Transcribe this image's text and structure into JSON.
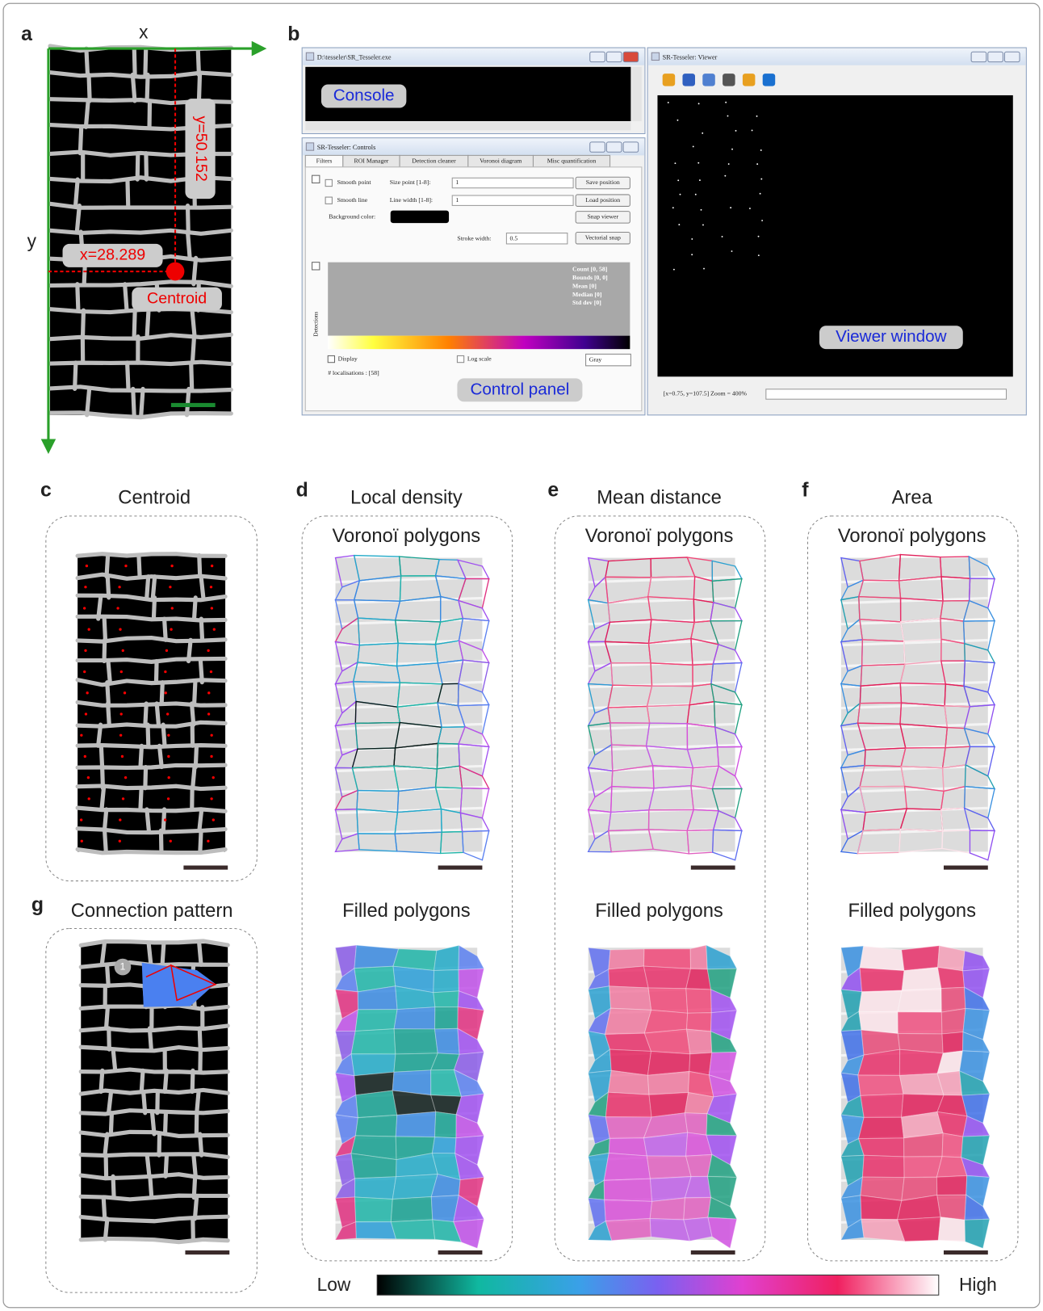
{
  "panel_labels": [
    "a",
    "b",
    "c",
    "d",
    "e",
    "f",
    "g"
  ],
  "panel_a": {
    "x_axis": "x",
    "y_axis": "y",
    "y_coord": "y=50.152",
    "x_coord": "x=28.289",
    "centroid": "Centroid"
  },
  "panel_b": {
    "console_window": {
      "title": "D:\\tesseler\\SR_Tesseler.exe",
      "label": "Console"
    },
    "controls_window": {
      "title": "SR-Tesseler: Controls",
      "tabs": [
        "Filters",
        "ROI Manager",
        "Detection cleaner",
        "Voronoi diagram",
        "Misc quantification"
      ],
      "smooth_point": "Smooth point",
      "size_point": "Size point [1-8]:",
      "size_point_value": "1",
      "save_position": "Save position",
      "smooth_line": "Smooth line",
      "line_width": "Line width [1-8]:",
      "line_width_value": "1",
      "load_position": "Load position",
      "background_color": "Background color:",
      "snap_viewer": "Snap viewer",
      "stroke_width": "Stroke width:",
      "stroke_width_value": "0.5",
      "vectorial_snap": "Vectorial snap",
      "stats": [
        "Count [0, 58]",
        "Bounds [0, 0]",
        "Mean [0]",
        "Median [0]",
        "Std dev [0]"
      ],
      "detections": "Detections",
      "display": "Display",
      "log_scale": "Log scale",
      "colormap": "Gray",
      "localisations": "# localisations : [58]",
      "label": "Control panel"
    },
    "viewer_window": {
      "title": "SR-Tesseler: Viewer",
      "label": "Viewer window",
      "status": "[x=0.75, y=107.5] Zoom = 400%"
    }
  },
  "panel_c": {
    "title": "Centroid"
  },
  "panel_d": {
    "title": "Local density",
    "top": "Voronoï polygons",
    "bottom": "Filled polygons"
  },
  "panel_e": {
    "title": "Mean distance",
    "top": "Voronoï polygons",
    "bottom": "Filled polygons"
  },
  "panel_f": {
    "title": "Area",
    "top": "Voronoï polygons",
    "bottom": "Filled polygons"
  },
  "panel_g": {
    "title": "Connection pattern",
    "marker": "1"
  },
  "colorbar": {
    "low": "Low",
    "high": "High"
  }
}
